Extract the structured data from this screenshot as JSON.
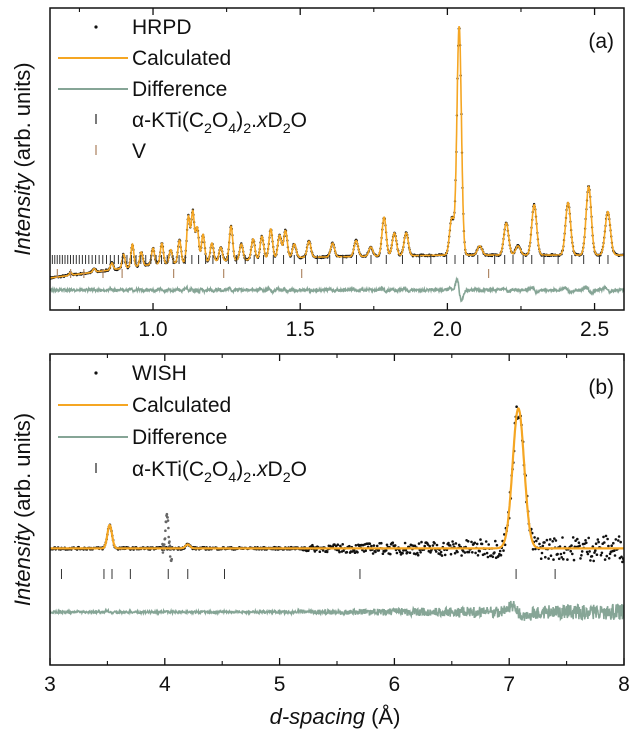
{
  "colors": {
    "observed": "#111111",
    "calculated": "#f5a623",
    "difference": "#86a596",
    "tick_ktio": "#333333",
    "tick_v": "#b08968",
    "axis": "#111111"
  },
  "ylabel": {
    "italic": "Intensity",
    "normal": " (arb. units)"
  },
  "xlabel": {
    "italic": "d-spacing",
    "normal": " (Å)"
  },
  "legend_formula": {
    "pre": "α-KTi(C",
    "s1": "2",
    "o": "O",
    "s2": "4",
    "close": ")",
    "s3": "2",
    "dot": ".",
    "x": "x",
    "d": "D",
    "s4": "2",
    "end": "O"
  },
  "chart_data": [
    {
      "type": "line",
      "panel_label": "(a)",
      "xlim": [
        0.65,
        2.6
      ],
      "xticks": [
        1.0,
        1.5,
        2.0,
        2.5
      ],
      "xtick_labels": [
        "1.0",
        "1.5",
        "2.0",
        "2.5"
      ],
      "legend": [
        {
          "marker": "dot",
          "label": "HRPD"
        },
        {
          "marker": "line",
          "color_key": "calculated",
          "label": "Calculated"
        },
        {
          "marker": "line",
          "color_key": "difference",
          "label": "Difference"
        },
        {
          "marker": "tick",
          "color_key": "tick_ktio",
          "label": "α-KTi(C2O4)2.xD2O"
        },
        {
          "marker": "tick",
          "color_key": "tick_v",
          "label": "V"
        }
      ],
      "background_line": [
        [
          0.65,
          0.02
        ],
        [
          1.0,
          0.08
        ],
        [
          1.5,
          0.11
        ],
        [
          2.0,
          0.12
        ],
        [
          2.6,
          0.12
        ]
      ],
      "peaks": [
        [
          0.72,
          0.012
        ],
        [
          0.8,
          0.015
        ],
        [
          0.86,
          0.03
        ],
        [
          0.9,
          0.06
        ],
        [
          0.93,
          0.1
        ],
        [
          0.96,
          0.06
        ],
        [
          1.0,
          0.07
        ],
        [
          1.03,
          0.09
        ],
        [
          1.06,
          0.06
        ],
        [
          1.09,
          0.1
        ],
        [
          1.12,
          0.2
        ],
        [
          1.135,
          0.22
        ],
        [
          1.15,
          0.15
        ],
        [
          1.17,
          0.12
        ],
        [
          1.2,
          0.08
        ],
        [
          1.23,
          0.06
        ],
        [
          1.265,
          0.15
        ],
        [
          1.3,
          0.07
        ],
        [
          1.34,
          0.09
        ],
        [
          1.37,
          0.1
        ],
        [
          1.4,
          0.13
        ],
        [
          1.43,
          0.1
        ],
        [
          1.45,
          0.12
        ],
        [
          1.48,
          0.06
        ],
        [
          1.53,
          0.07
        ],
        [
          1.61,
          0.06
        ],
        [
          1.69,
          0.07
        ],
        [
          1.74,
          0.04
        ],
        [
          1.785,
          0.17
        ],
        [
          1.82,
          0.1
        ],
        [
          1.86,
          0.1
        ],
        [
          2.015,
          0.16
        ],
        [
          2.04,
          1.0
        ],
        [
          2.11,
          0.04
        ],
        [
          2.2,
          0.14
        ],
        [
          2.24,
          0.04
        ],
        [
          2.295,
          0.22
        ],
        [
          2.41,
          0.23
        ],
        [
          2.48,
          0.3
        ],
        [
          2.545,
          0.19
        ]
      ],
      "ticks_ktio_range": [
        0.65,
        2.58
      ],
      "ticks_v": [
        0.675,
        0.72,
        0.765,
        0.83,
        0.895,
        1.07,
        1.24,
        1.505,
        2.14
      ],
      "ylim": [
        -0.12,
        1.2
      ]
    },
    {
      "type": "line",
      "panel_label": "(b)",
      "xlim": [
        3.0,
        8.0
      ],
      "xticks": [
        3,
        4,
        5,
        6,
        7,
        8
      ],
      "xtick_labels": [
        "3",
        "4",
        "5",
        "6",
        "7",
        "8"
      ],
      "legend": [
        {
          "marker": "dot",
          "label": "WISH"
        },
        {
          "marker": "line",
          "color_key": "calculated",
          "label": "Calculated"
        },
        {
          "marker": "line",
          "color_key": "difference",
          "label": "Difference"
        },
        {
          "marker": "tick",
          "color_key": "tick_ktio",
          "label": "α-KTi(C2O4)2.xD2O"
        }
      ],
      "background_line": [
        [
          3.0,
          0.0
        ],
        [
          8.0,
          0.0
        ]
      ],
      "peaks": [
        [
          3.52,
          0.12
        ],
        [
          4.2,
          0.02
        ],
        [
          7.08,
          0.72
        ]
      ],
      "outliers": [
        [
          4.02,
          0.19
        ]
      ],
      "ticks_ktio": [
        3.1,
        3.47,
        3.54,
        3.7,
        4.03,
        4.2,
        4.52,
        5.7,
        7.06,
        7.4
      ],
      "ylim": [
        -0.6,
        1.0
      ]
    }
  ],
  "x_axis_shared_label": "d-spacing (Å)"
}
